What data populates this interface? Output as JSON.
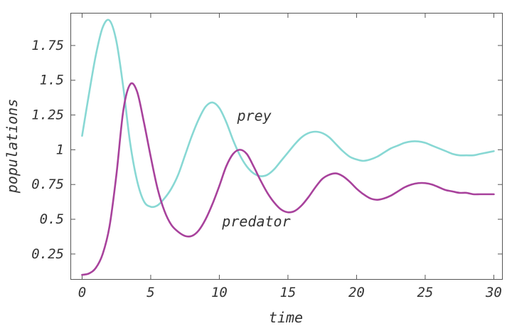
{
  "chart_data": {
    "type": "line",
    "title": "",
    "xlabel": "time",
    "ylabel": "populations",
    "xlim": [
      -0.8,
      30.6
    ],
    "ylim": [
      0.07,
      1.98
    ],
    "x_ticks": [
      0,
      5,
      10,
      15,
      20,
      25,
      30
    ],
    "x_tick_labels": [
      "0",
      "5",
      "10",
      "15",
      "20",
      "25",
      "30"
    ],
    "y_ticks": [
      0.25,
      0.5,
      0.75,
      1,
      1.25,
      1.5,
      1.75
    ],
    "y_tick_labels": [
      "0.25",
      "0.5",
      "0.75",
      "1",
      "1.25",
      "1.5",
      "1.75"
    ],
    "grid": false,
    "legend": "none",
    "series": [
      {
        "color": "#88d8d4",
        "x": [
          0,
          0.5,
          1,
          1.5,
          2,
          2.5,
          3,
          3.5,
          4,
          4.5,
          5,
          5.5,
          6,
          6.5,
          7,
          7.5,
          8,
          8.5,
          9,
          9.5,
          10,
          10.5,
          11,
          11.5,
          12,
          12.5,
          13,
          13.5,
          14,
          14.5,
          15,
          15.5,
          16,
          16.5,
          17,
          17.5,
          18,
          18.5,
          19,
          19.5,
          20,
          20.5,
          21,
          21.5,
          22,
          22.5,
          23,
          23.5,
          24,
          24.5,
          25,
          25.5,
          26,
          26.5,
          27,
          27.5,
          28,
          28.5,
          29,
          29.5,
          30
        ],
        "values": [
          1.1,
          1.4,
          1.68,
          1.88,
          1.93,
          1.78,
          1.45,
          1.05,
          0.78,
          0.63,
          0.59,
          0.6,
          0.65,
          0.72,
          0.82,
          0.96,
          1.1,
          1.22,
          1.31,
          1.34,
          1.3,
          1.2,
          1.07,
          0.96,
          0.88,
          0.83,
          0.81,
          0.82,
          0.86,
          0.92,
          0.98,
          1.04,
          1.09,
          1.12,
          1.13,
          1.12,
          1.09,
          1.04,
          0.99,
          0.95,
          0.93,
          0.92,
          0.93,
          0.95,
          0.98,
          1.01,
          1.03,
          1.05,
          1.06,
          1.06,
          1.05,
          1.03,
          1.01,
          0.99,
          0.97,
          0.96,
          0.96,
          0.96,
          0.97,
          0.98,
          0.99
        ]
      },
      {
        "color": "#a8429c",
        "x": [
          0,
          0.5,
          1,
          1.5,
          2,
          2.5,
          3,
          3.5,
          4,
          4.5,
          5,
          5.5,
          6,
          6.5,
          7,
          7.5,
          8,
          8.5,
          9,
          9.5,
          10,
          10.5,
          11,
          11.5,
          12,
          12.5,
          13,
          13.5,
          14,
          14.5,
          15,
          15.5,
          16,
          16.5,
          17,
          17.5,
          18,
          18.5,
          19,
          19.5,
          20,
          20.5,
          21,
          21.5,
          22,
          22.5,
          23,
          23.5,
          24,
          24.5,
          25,
          25.5,
          26,
          26.5,
          27,
          27.5,
          28,
          28.5,
          29,
          29.5,
          30
        ],
        "values": [
          0.1,
          0.11,
          0.15,
          0.25,
          0.45,
          0.82,
          1.28,
          1.47,
          1.42,
          1.2,
          0.95,
          0.72,
          0.56,
          0.46,
          0.41,
          0.38,
          0.38,
          0.42,
          0.5,
          0.61,
          0.74,
          0.88,
          0.97,
          1.0,
          0.97,
          0.88,
          0.78,
          0.69,
          0.62,
          0.57,
          0.55,
          0.56,
          0.6,
          0.66,
          0.73,
          0.79,
          0.82,
          0.83,
          0.81,
          0.77,
          0.72,
          0.68,
          0.65,
          0.64,
          0.65,
          0.67,
          0.7,
          0.73,
          0.75,
          0.76,
          0.76,
          0.75,
          0.73,
          0.71,
          0.7,
          0.69,
          0.69,
          0.68,
          0.68,
          0.68,
          0.68
        ]
      }
    ],
    "annotations": [
      {
        "text": "prey",
        "x": 11.3,
        "y": 1.21
      },
      {
        "text": "predator",
        "x": 10.2,
        "y": 0.45
      }
    ]
  }
}
